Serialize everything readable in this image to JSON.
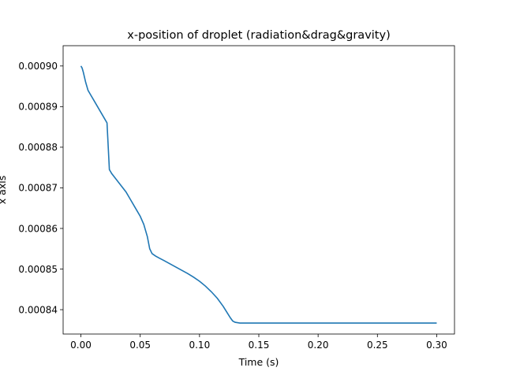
{
  "chart_data": {
    "type": "line",
    "title": "x-position of droplet (radiation&drag&gravity)",
    "xlabel": "Time (s)",
    "ylabel": "x axis",
    "xlim": [
      -0.015,
      0.315
    ],
    "ylim": [
      0.000834,
      0.000905
    ],
    "xticks": [
      0.0,
      0.05,
      0.1,
      0.15,
      0.2,
      0.25,
      0.3
    ],
    "xtick_labels": [
      "0.00",
      "0.05",
      "0.10",
      "0.15",
      "0.20",
      "0.25",
      "0.30"
    ],
    "yticks": [
      0.00084,
      0.00085,
      0.00086,
      0.00087,
      0.00088,
      0.00089,
      0.0009
    ],
    "ytick_labels": [
      "0.00084",
      "0.00085",
      "0.00086",
      "0.00087",
      "0.00088",
      "0.00089",
      "0.00090"
    ],
    "grid": false,
    "line_color": "#1f77b4",
    "series": [
      {
        "x": [
          0.0,
          0.001,
          0.002,
          0.004,
          0.006,
          0.008,
          0.011,
          0.014,
          0.017,
          0.02,
          0.022,
          0.024,
          0.026,
          0.03,
          0.034,
          0.038,
          0.042,
          0.046,
          0.05,
          0.053,
          0.056,
          0.058,
          0.06,
          0.063,
          0.066,
          0.07,
          0.075,
          0.08,
          0.085,
          0.09,
          0.095,
          0.1,
          0.105,
          0.11,
          0.115,
          0.12,
          0.123,
          0.126,
          0.128,
          0.13,
          0.132,
          0.134,
          0.136,
          0.14,
          0.145,
          0.15,
          0.16,
          0.18,
          0.2,
          0.22,
          0.25,
          0.28,
          0.3
        ],
        "y": [
          0.0009,
          0.0008995,
          0.0008985,
          0.000896,
          0.000894,
          0.000893,
          0.0008915,
          0.00089,
          0.0008885,
          0.000887,
          0.000886,
          0.0008745,
          0.0008735,
          0.000872,
          0.0008705,
          0.000869,
          0.000867,
          0.000865,
          0.000863,
          0.000861,
          0.000858,
          0.000855,
          0.0008538,
          0.0008532,
          0.0008527,
          0.0008521,
          0.0008513,
          0.0008505,
          0.0008497,
          0.0008489,
          0.000848,
          0.000847,
          0.0008458,
          0.0008444,
          0.0008428,
          0.0008408,
          0.0008394,
          0.000838,
          0.0008372,
          0.0008369,
          0.0008368,
          0.0008367,
          0.0008367,
          0.0008367,
          0.0008367,
          0.0008367,
          0.0008367,
          0.0008367,
          0.0008367,
          0.0008367,
          0.0008367,
          0.0008367,
          0.0008367
        ]
      }
    ]
  }
}
